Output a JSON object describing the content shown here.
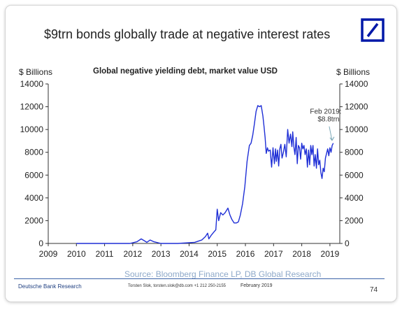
{
  "slide": {
    "title": "$9trn bonds globally trade at negative interest rates",
    "left_axis_unit": "$ Billions",
    "right_axis_unit": "$ Billions",
    "source": "Source: Bloomberg Finance LP, DB Global Research",
    "footer_brand": "Deutsche Bank Research",
    "footer_author": "Torsten Slok, torsten.slok@db.com  +1 212 250-2155",
    "footer_date": "February 2019",
    "page_number": "74",
    "logo_color": "#0018a8",
    "line_color": "#1f2fd6"
  },
  "chart_data": {
    "type": "line",
    "title": "Global negative yielding debt, market value USD",
    "xlabel": "",
    "ylabel": "$ Billions",
    "xlim": [
      2009,
      2019.35
    ],
    "ylim": [
      0,
      14000
    ],
    "x_ticks": [
      "2009",
      "2010",
      "2011",
      "2012",
      "2013",
      "2014",
      "2015",
      "2016",
      "2017",
      "2018",
      "2019"
    ],
    "y_ticks": [
      "0",
      "2000",
      "4000",
      "6000",
      "8000",
      "10000",
      "12000",
      "14000"
    ],
    "grid": false,
    "annotation": {
      "text_line1": "Feb 2019:",
      "text_line2": "$8.8trn",
      "x": 2019.1,
      "y": 8800
    },
    "series": [
      {
        "x": [
          2010.0,
          2011.9,
          2012.15,
          2012.3,
          2012.4,
          2012.5,
          2012.62,
          2012.75,
          2013.0,
          2013.6,
          2014.2,
          2014.45,
          2014.58,
          2014.66,
          2014.7,
          2014.78,
          2014.88,
          2014.95,
          2015.0,
          2015.05,
          2015.12,
          2015.2,
          2015.28,
          2015.38,
          2015.45,
          2015.52,
          2015.6,
          2015.68,
          2015.75,
          2015.82,
          2015.9,
          2015.98,
          2016.06,
          2016.14,
          2016.2,
          2016.26,
          2016.32,
          2016.38,
          2016.44,
          2016.5,
          2016.56,
          2016.62,
          2016.66,
          2016.7,
          2016.74,
          2016.78,
          2016.82,
          2016.88,
          2016.93,
          2016.98,
          2017.03,
          2017.07,
          2017.1,
          2017.14,
          2017.18,
          2017.22,
          2017.26,
          2017.3,
          2017.35,
          2017.4,
          2017.45,
          2017.5,
          2017.55,
          2017.6,
          2017.65,
          2017.68,
          2017.72,
          2017.76,
          2017.8,
          2017.84,
          2017.88,
          2017.92,
          2017.96,
          2018.0,
          2018.04,
          2018.08,
          2018.12,
          2018.16,
          2018.2,
          2018.24,
          2018.28,
          2018.32,
          2018.36,
          2018.4,
          2018.44,
          2018.48,
          2018.52,
          2018.56,
          2018.6,
          2018.64,
          2018.68,
          2018.72,
          2018.76,
          2018.8,
          2018.84,
          2018.88,
          2018.92,
          2018.96,
          2019.0,
          2019.04,
          2019.08,
          2019.12
        ],
        "y": [
          0,
          0,
          150,
          400,
          250,
          100,
          300,
          150,
          0,
          0,
          100,
          300,
          600,
          900,
          400,
          700,
          1000,
          1200,
          3000,
          2000,
          2700,
          2500,
          2700,
          3100,
          2500,
          2100,
          1800,
          1800,
          1900,
          2500,
          3500,
          5000,
          7200,
          8600,
          8800,
          9500,
          10500,
          11600,
          12100,
          12000,
          12100,
          11200,
          10300,
          9300,
          7900,
          8400,
          8100,
          8200,
          6700,
          8400,
          7000,
          8300,
          7200,
          8200,
          6800,
          8300,
          8700,
          7500,
          8000,
          8700,
          7600,
          10000,
          8800,
          9600,
          8500,
          9800,
          8500,
          7800,
          9300,
          7000,
          8600,
          8400,
          7400,
          8800,
          8300,
          8600,
          7800,
          8300,
          6700,
          8200,
          6900,
          8600,
          7800,
          8600,
          6800,
          7800,
          6600,
          8300,
          6900,
          7300,
          6200,
          5700,
          6600,
          6300,
          7500,
          7900,
          8300,
          7700,
          8400,
          8000,
          8600,
          8800
        ]
      }
    ]
  }
}
